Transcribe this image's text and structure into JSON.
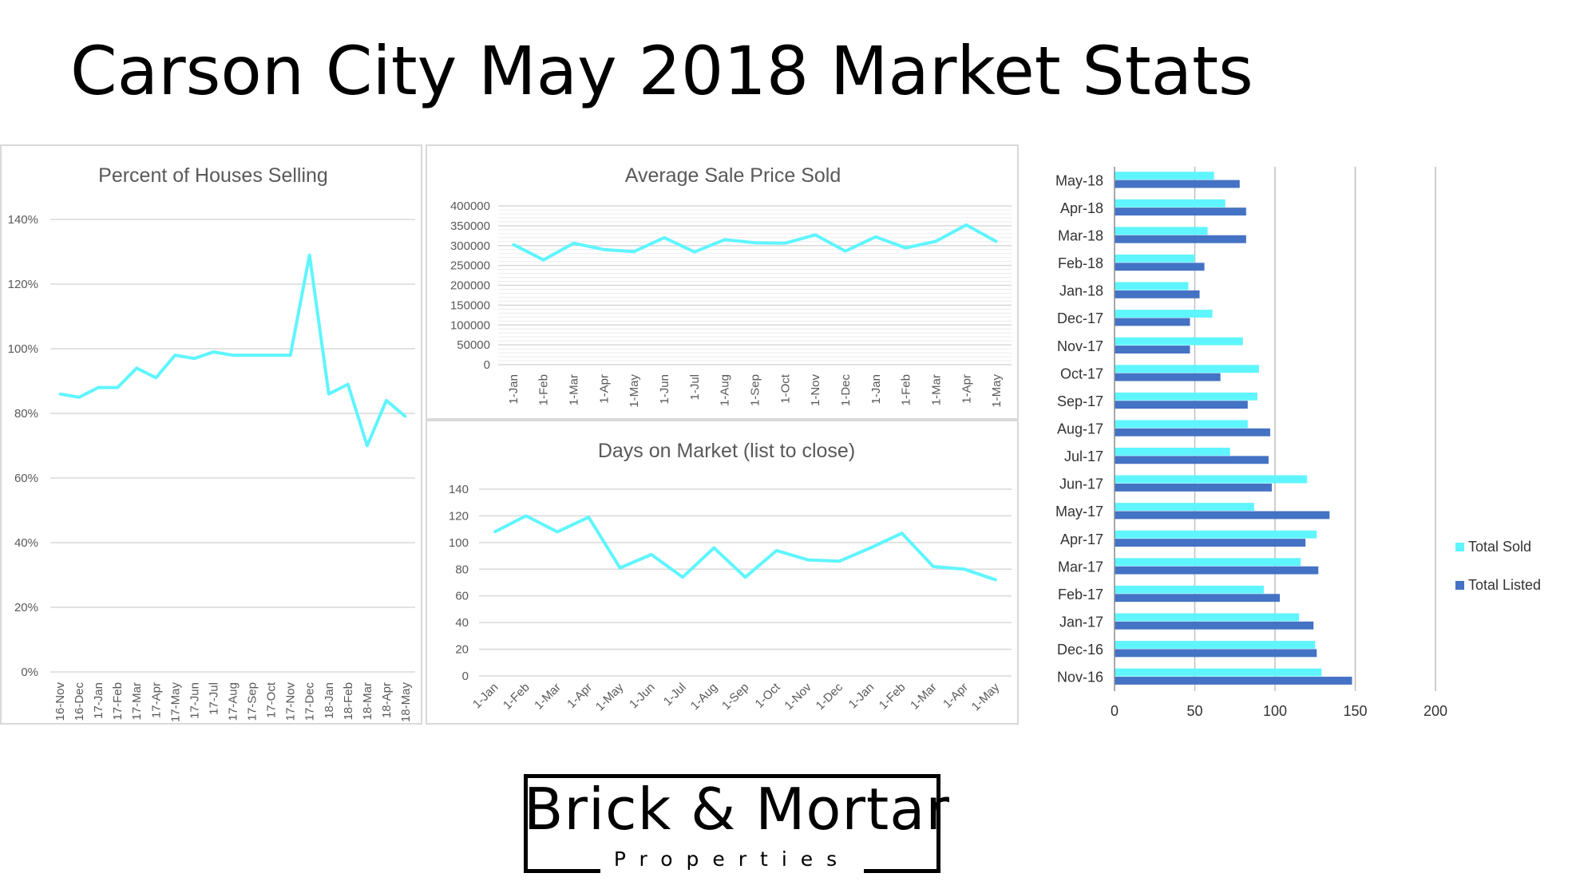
{
  "page": {
    "title": "Carson City May 2018 Market Stats"
  },
  "logo": {
    "line1": "Brick & Mortar",
    "line2": "Properties"
  },
  "colors": {
    "line": "#5ff5ff",
    "total_sold": "#5ff5ff",
    "total_listed": "#4472c4",
    "grid": "#d9d9d9",
    "border": "#d9d9d9"
  },
  "chart_data": [
    {
      "id": "percent-selling",
      "type": "line",
      "title": "Percent of Houses Selling",
      "xlabel": "",
      "ylabel": "",
      "categories": [
        "16-Nov",
        "16-Dec",
        "17-Jan",
        "17-Feb",
        "17-Mar",
        "17-Apr",
        "17-May",
        "17-Jun",
        "17-Jul",
        "17-Aug",
        "17-Sep",
        "17-Oct",
        "17-Nov",
        "17-Dec",
        "18-Jan",
        "18-Feb",
        "18-Mar",
        "18-Apr",
        "18-May"
      ],
      "series": [
        {
          "values": [
            86,
            85,
            88,
            88,
            94,
            91,
            98,
            97,
            99,
            98,
            98,
            98,
            98,
            129,
            86,
            89,
            70,
            84,
            79
          ]
        }
      ],
      "ylim": [
        0,
        140
      ],
      "yticks": [
        0,
        20,
        40,
        60,
        80,
        100,
        120,
        140
      ],
      "ytick_labels": [
        "0%",
        "20%",
        "40%",
        "60%",
        "80%",
        "100%",
        "120%",
        "140%"
      ],
      "grid": true,
      "legend": "none"
    },
    {
      "id": "avg-sale-price",
      "type": "line",
      "title": "Average Sale Price Sold",
      "xlabel": "",
      "ylabel": "",
      "categories": [
        "1-Jan",
        "1-Feb",
        "1-Mar",
        "1-Apr",
        "1-May",
        "1-Jun",
        "1-Jul",
        "1-Aug",
        "1-Sep",
        "1-Oct",
        "1-Nov",
        "1-Dec",
        "1-Jan",
        "1-Feb",
        "1-Mar",
        "1-Apr",
        "1-May"
      ],
      "series": [
        {
          "values": [
            303000,
            264000,
            306000,
            290000,
            285000,
            320000,
            284000,
            315000,
            307000,
            306000,
            327000,
            286000,
            322000,
            294000,
            311000,
            352000,
            310000
          ]
        }
      ],
      "ylim": [
        0,
        400000
      ],
      "yticks": [
        0,
        50000,
        100000,
        150000,
        200000,
        250000,
        300000,
        350000,
        400000
      ],
      "ytick_labels": [
        "0",
        "50000",
        "100000",
        "150000",
        "200000",
        "250000",
        "300000",
        "350000",
        "400000"
      ],
      "grid": true,
      "legend": "none"
    },
    {
      "id": "days-on-market",
      "type": "line",
      "title": "Days on Market (list to close)",
      "xlabel": "",
      "ylabel": "",
      "categories": [
        "1-Jan",
        "1-Feb",
        "1-Mar",
        "1-Apr",
        "1-May",
        "1-Jun",
        "1-Jul",
        "1-Aug",
        "1-Sep",
        "1-Oct",
        "1-Nov",
        "1-Dec",
        "1-Jan",
        "1-Feb",
        "1-Mar",
        "1-Apr",
        "1-May"
      ],
      "series": [
        {
          "values": [
            108,
            120,
            108,
            119,
            81,
            91,
            74,
            96,
            74,
            94,
            87,
            86,
            96,
            107,
            82,
            80,
            72
          ]
        }
      ],
      "ylim": [
        0,
        140
      ],
      "yticks": [
        0,
        20,
        40,
        60,
        80,
        100,
        120,
        140
      ],
      "ytick_labels": [
        "0",
        "20",
        "40",
        "60",
        "80",
        "100",
        "120",
        "140"
      ],
      "grid": true,
      "legend": "none"
    },
    {
      "id": "sold-vs-listed",
      "type": "bar",
      "orientation": "horizontal",
      "title": "",
      "xlabel": "",
      "ylabel": "",
      "categories": [
        "Nov-16",
        "Dec-16",
        "Jan-17",
        "Feb-17",
        "Mar-17",
        "Apr-17",
        "May-17",
        "Jun-17",
        "Jul-17",
        "Aug-17",
        "Sep-17",
        "Oct-17",
        "Nov-17",
        "Dec-17",
        "Jan-18",
        "Feb-18",
        "Mar-18",
        "Apr-18",
        "May-18"
      ],
      "series": [
        {
          "name": "Total Sold",
          "values": [
            129,
            125,
            115,
            93,
            116,
            126,
            87,
            120,
            72,
            83,
            89,
            90,
            80,
            61,
            46,
            50,
            58,
            69,
            62
          ]
        },
        {
          "name": "Total Listed",
          "values": [
            148,
            126,
            124,
            103,
            127,
            119,
            134,
            98,
            96,
            97,
            83,
            66,
            47,
            47,
            53,
            56,
            82,
            82,
            78
          ]
        }
      ],
      "xlim": [
        0,
        200
      ],
      "xticks": [
        0,
        50,
        100,
        150,
        200
      ],
      "xtick_labels": [
        "0",
        "50",
        "100",
        "150",
        "200"
      ],
      "grid": true,
      "legend": "right"
    }
  ]
}
